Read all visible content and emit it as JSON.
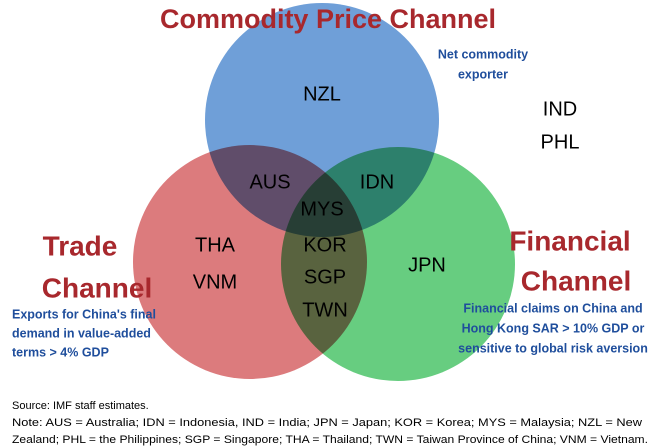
{
  "channels": {
    "commodity": {
      "title": "Commodity Price Channel",
      "note": [
        "Net commodity",
        "exporter"
      ]
    },
    "trade": {
      "title": [
        "Trade",
        "Channel"
      ],
      "note": [
        "Exports for China's final",
        "demand in value-added",
        "terms > 4% GDP"
      ]
    },
    "financial": {
      "title": [
        "Financial",
        "Channel"
      ],
      "note": [
        "Financial claims on China and",
        "Hong Kong SAR > 10% GDP or",
        "sensitive to global risk aversion"
      ]
    }
  },
  "countries": {
    "outside": [
      "IND",
      "PHL"
    ],
    "commodity_only": [
      "NZL"
    ],
    "commodity_trade": [
      "AUS"
    ],
    "commodity_financial": [
      "IDN"
    ],
    "all_three": [
      "MYS"
    ],
    "trade_financial": [
      "KOR",
      "SGP",
      "TWN"
    ],
    "trade_only": [
      "THA",
      "VNM"
    ],
    "financial_only": [
      "JPN"
    ]
  },
  "footer": {
    "source": "Source: IMF staff estimates.",
    "note": [
      "Note: AUS = Australia; IDN = Indonesia, IND = India; JPN = Japan; KOR = Korea; MYS = Malaysia; NZL = New",
      "Zealand; PHL = the Philippines; SGP = Singapore; THA = Thailand; TWN = Taiwan Province of China; VNM = Vietnam."
    ]
  }
}
